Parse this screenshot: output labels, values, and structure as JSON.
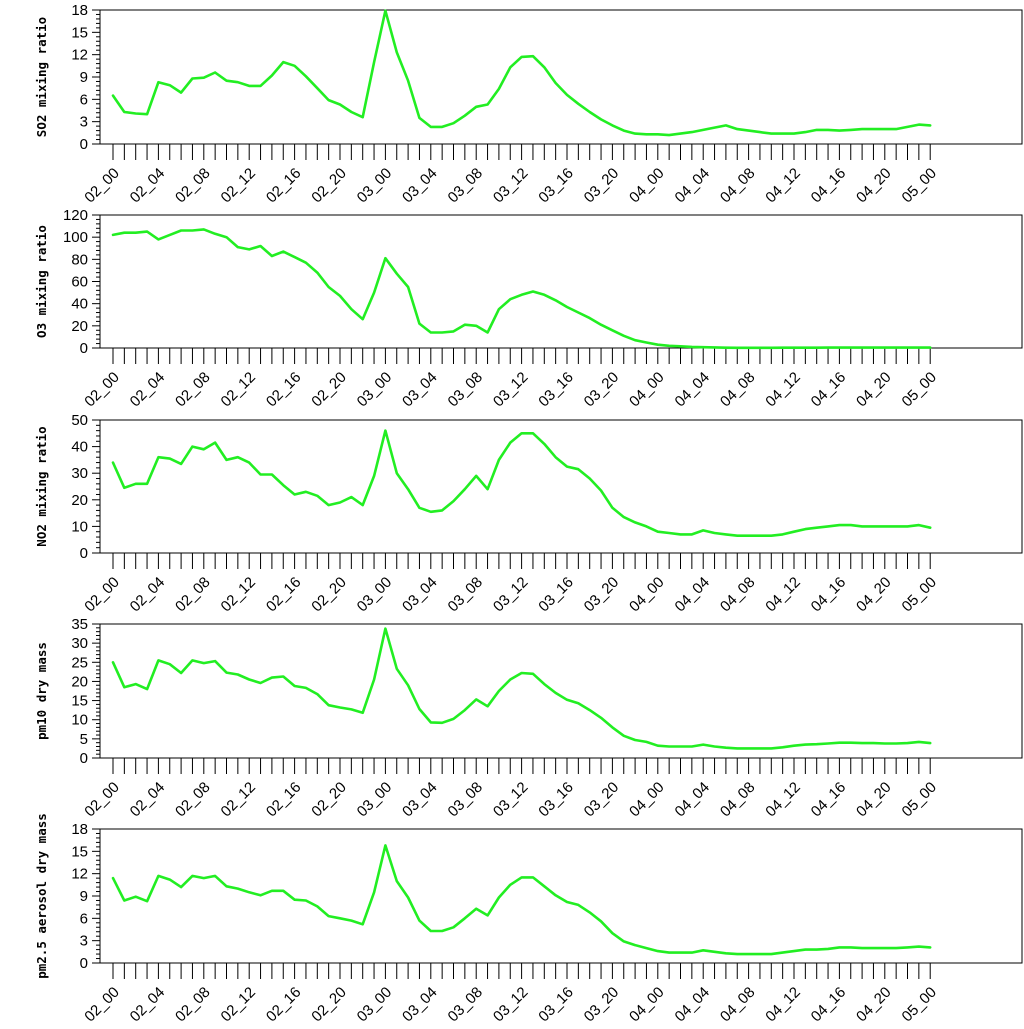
{
  "style": {
    "line_color": "#22ee22",
    "axis_color": "#000000",
    "background": "#ffffff"
  },
  "chart_data": [
    {
      "type": "line",
      "ylabel": "SO2 mixing ratio",
      "ylim": [
        0,
        18
      ],
      "y_ticks": [
        "0",
        "3",
        "6",
        "9",
        "12",
        "15",
        "18"
      ],
      "x_tick_labels": [
        "02_00",
        "02_04",
        "02_08",
        "02_12",
        "02_16",
        "02_20",
        "03_00",
        "03_04",
        "03_08",
        "03_12",
        "03_16",
        "03_20",
        "04_00",
        "04_04",
        "04_08",
        "04_12",
        "04_16",
        "04_20",
        "05_00"
      ],
      "x": [
        0,
        1,
        2,
        3,
        4,
        5,
        6,
        7,
        8,
        9,
        10,
        11,
        12,
        13,
        14,
        15,
        16,
        17,
        18,
        19,
        20,
        21,
        22,
        23,
        24,
        25,
        26,
        27,
        28,
        29,
        30,
        31,
        32,
        33,
        34,
        35,
        36,
        37,
        38,
        39,
        40,
        41,
        42,
        43,
        44,
        45,
        46,
        47,
        48,
        49,
        50,
        51,
        52,
        53,
        54,
        55,
        56,
        57,
        58,
        59,
        60,
        61,
        62,
        63,
        64,
        65,
        66,
        67,
        68,
        69,
        70,
        71,
        72
      ],
      "series": [
        {
          "values": [
            6.5,
            4.3,
            4.1,
            4.0,
            8.3,
            7.9,
            6.9,
            8.8,
            8.9,
            9.6,
            8.5,
            8.3,
            7.8,
            7.8,
            9.2,
            11.0,
            10.5,
            9.1,
            7.5,
            5.9,
            5.3,
            4.3,
            3.6,
            11.0,
            17.9,
            12.3,
            8.5,
            3.5,
            2.3,
            2.3,
            2.8,
            3.8,
            5.0,
            5.3,
            7.4,
            10.3,
            11.7,
            11.8,
            10.3,
            8.2,
            6.6,
            5.4,
            4.3,
            3.3,
            2.5,
            1.8,
            1.4,
            1.3,
            1.3,
            1.2,
            1.4,
            1.6,
            1.9,
            2.2,
            2.5,
            2.0,
            1.8,
            1.6,
            1.4,
            1.4,
            1.4,
            1.6,
            1.9,
            1.9,
            1.8,
            1.9,
            2.0,
            2.0,
            2.0,
            2.0,
            2.3,
            2.6,
            2.5
          ]
        }
      ]
    },
    {
      "type": "line",
      "ylabel": "O3 mixing ratio",
      "ylim": [
        0,
        120
      ],
      "y_ticks": [
        "0",
        "20",
        "40",
        "60",
        "80",
        "100",
        "120"
      ],
      "x_tick_labels": [
        "02_00",
        "02_04",
        "02_08",
        "02_12",
        "02_16",
        "02_20",
        "03_00",
        "03_04",
        "03_08",
        "03_12",
        "03_16",
        "03_20",
        "04_00",
        "04_04",
        "04_08",
        "04_12",
        "04_16",
        "04_20",
        "05_00"
      ],
      "x": [
        0,
        1,
        2,
        3,
        4,
        5,
        6,
        7,
        8,
        9,
        10,
        11,
        12,
        13,
        14,
        15,
        16,
        17,
        18,
        19,
        20,
        21,
        22,
        23,
        24,
        25,
        26,
        27,
        28,
        29,
        30,
        31,
        32,
        33,
        34,
        35,
        36,
        37,
        38,
        39,
        40,
        41,
        42,
        43,
        44,
        45,
        46,
        47,
        48,
        49,
        50,
        51,
        52,
        53,
        54,
        55,
        56,
        57,
        58,
        59,
        60,
        61,
        62,
        63,
        64,
        65,
        66,
        67,
        68,
        69,
        70,
        71,
        72
      ],
      "series": [
        {
          "values": [
            102,
            104,
            104,
            105,
            98,
            102,
            106,
            106,
            107,
            103,
            100,
            91,
            89,
            92,
            83,
            87,
            82,
            77,
            68,
            55,
            47,
            35,
            26,
            50,
            81,
            67,
            55,
            22,
            14,
            14,
            15,
            21,
            20,
            14,
            35,
            44,
            48,
            51,
            48,
            43,
            37,
            32,
            27,
            21,
            16,
            11,
            7,
            5,
            3,
            2,
            1.5,
            1,
            0.7,
            0.5,
            0.3,
            0.2,
            0.2,
            0.2,
            0.2,
            0.3,
            0.3,
            0.3,
            0.3,
            0.4,
            0.4,
            0.4,
            0.4,
            0.4,
            0.4,
            0.4,
            0.4,
            0.4,
            0.4
          ]
        }
      ]
    },
    {
      "type": "line",
      "ylabel": "NO2 mixing ratio",
      "ylim": [
        0,
        50
      ],
      "y_ticks": [
        "0",
        "10",
        "20",
        "30",
        "40",
        "50"
      ],
      "x_tick_labels": [
        "02_00",
        "02_04",
        "02_08",
        "02_12",
        "02_16",
        "02_20",
        "03_00",
        "03_04",
        "03_08",
        "03_12",
        "03_16",
        "03_20",
        "04_00",
        "04_04",
        "04_08",
        "04_12",
        "04_16",
        "04_20",
        "05_00"
      ],
      "x": [
        0,
        1,
        2,
        3,
        4,
        5,
        6,
        7,
        8,
        9,
        10,
        11,
        12,
        13,
        14,
        15,
        16,
        17,
        18,
        19,
        20,
        21,
        22,
        23,
        24,
        25,
        26,
        27,
        28,
        29,
        30,
        31,
        32,
        33,
        34,
        35,
        36,
        37,
        38,
        39,
        40,
        41,
        42,
        43,
        44,
        45,
        46,
        47,
        48,
        49,
        50,
        51,
        52,
        53,
        54,
        55,
        56,
        57,
        58,
        59,
        60,
        61,
        62,
        63,
        64,
        65,
        66,
        67,
        68,
        69,
        70,
        71,
        72
      ],
      "series": [
        {
          "values": [
            34,
            24.5,
            26,
            26,
            36,
            35.5,
            33.5,
            40,
            39,
            41.5,
            35,
            36,
            34,
            29.5,
            29.5,
            25.5,
            22,
            23,
            21.5,
            18,
            19,
            21,
            18,
            29,
            46,
            30,
            24,
            17,
            15.5,
            16,
            19.5,
            24,
            29,
            24,
            35,
            41.5,
            45,
            45,
            41,
            36,
            32.5,
            31.5,
            28,
            23.5,
            17,
            13.5,
            11.5,
            10,
            8,
            7.5,
            7,
            7,
            8.5,
            7.5,
            7,
            6.5,
            6.5,
            6.5,
            6.5,
            7,
            8,
            9,
            9.5,
            10,
            10.5,
            10.5,
            10,
            10,
            10,
            10,
            10,
            10.5,
            9.5
          ]
        }
      ]
    },
    {
      "type": "line",
      "ylabel": "pm10 dry mass",
      "ylim": [
        0,
        35
      ],
      "y_ticks": [
        "0",
        "5",
        "10",
        "15",
        "20",
        "25",
        "30",
        "35"
      ],
      "x_tick_labels": [
        "02_00",
        "02_04",
        "02_08",
        "02_12",
        "02_16",
        "02_20",
        "03_00",
        "03_04",
        "03_08",
        "03_12",
        "03_16",
        "03_20",
        "04_00",
        "04_04",
        "04_08",
        "04_12",
        "04_16",
        "04_20",
        "05_00"
      ],
      "x": [
        0,
        1,
        2,
        3,
        4,
        5,
        6,
        7,
        8,
        9,
        10,
        11,
        12,
        13,
        14,
        15,
        16,
        17,
        18,
        19,
        20,
        21,
        22,
        23,
        24,
        25,
        26,
        27,
        28,
        29,
        30,
        31,
        32,
        33,
        34,
        35,
        36,
        37,
        38,
        39,
        40,
        41,
        42,
        43,
        44,
        45,
        46,
        47,
        48,
        49,
        50,
        51,
        52,
        53,
        54,
        55,
        56,
        57,
        58,
        59,
        60,
        61,
        62,
        63,
        64,
        65,
        66,
        67,
        68,
        69,
        70,
        71,
        72
      ],
      "series": [
        {
          "values": [
            25,
            18.5,
            19.3,
            18,
            25.5,
            24.5,
            22.2,
            25.5,
            24.8,
            25.3,
            22.3,
            21.8,
            20.5,
            19.6,
            21,
            21.3,
            18.8,
            18.3,
            16.7,
            13.8,
            13.2,
            12.7,
            11.8,
            20.5,
            33.8,
            23.3,
            19,
            12.8,
            9.3,
            9.2,
            10.2,
            12.5,
            15.3,
            13.5,
            17.5,
            20.5,
            22.2,
            22,
            19.3,
            17,
            15.2,
            14.3,
            12.5,
            10.5,
            8,
            5.8,
            4.7,
            4.2,
            3.2,
            3,
            3,
            3,
            3.5,
            3,
            2.7,
            2.5,
            2.5,
            2.5,
            2.5,
            2.8,
            3.2,
            3.5,
            3.6,
            3.8,
            4,
            4,
            3.9,
            3.9,
            3.8,
            3.8,
            3.9,
            4.2,
            3.9
          ]
        }
      ]
    },
    {
      "type": "line",
      "ylabel": "pm2.5 aerosol dry mass",
      "ylim": [
        0,
        18
      ],
      "y_ticks": [
        "0",
        "3",
        "6",
        "9",
        "12",
        "15",
        "18"
      ],
      "x_tick_labels": [
        "02_00",
        "02_04",
        "02_08",
        "02_12",
        "02_16",
        "02_20",
        "03_00",
        "03_04",
        "03_08",
        "03_12",
        "03_16",
        "03_20",
        "04_00",
        "04_04",
        "04_08",
        "04_12",
        "04_16",
        "04_20",
        "05_00"
      ],
      "x": [
        0,
        1,
        2,
        3,
        4,
        5,
        6,
        7,
        8,
        9,
        10,
        11,
        12,
        13,
        14,
        15,
        16,
        17,
        18,
        19,
        20,
        21,
        22,
        23,
        24,
        25,
        26,
        27,
        28,
        29,
        30,
        31,
        32,
        33,
        34,
        35,
        36,
        37,
        38,
        39,
        40,
        41,
        42,
        43,
        44,
        45,
        46,
        47,
        48,
        49,
        50,
        51,
        52,
        53,
        54,
        55,
        56,
        57,
        58,
        59,
        60,
        61,
        62,
        63,
        64,
        65,
        66,
        67,
        68,
        69,
        70,
        71,
        72
      ],
      "series": [
        {
          "values": [
            11.4,
            8.4,
            8.9,
            8.3,
            11.7,
            11.2,
            10.2,
            11.7,
            11.4,
            11.7,
            10.3,
            10.0,
            9.5,
            9.1,
            9.7,
            9.7,
            8.5,
            8.4,
            7.6,
            6.3,
            6.0,
            5.7,
            5.2,
            9.5,
            15.8,
            11.0,
            8.8,
            5.7,
            4.3,
            4.3,
            4.8,
            6.0,
            7.3,
            6.4,
            8.8,
            10.5,
            11.5,
            11.5,
            10.3,
            9.1,
            8.2,
            7.8,
            6.8,
            5.6,
            4.0,
            2.9,
            2.4,
            2.0,
            1.6,
            1.4,
            1.4,
            1.4,
            1.7,
            1.5,
            1.3,
            1.2,
            1.2,
            1.2,
            1.2,
            1.4,
            1.6,
            1.8,
            1.8,
            1.9,
            2.1,
            2.1,
            2.0,
            2.0,
            2.0,
            2.0,
            2.1,
            2.2,
            2.1
          ]
        }
      ]
    }
  ]
}
